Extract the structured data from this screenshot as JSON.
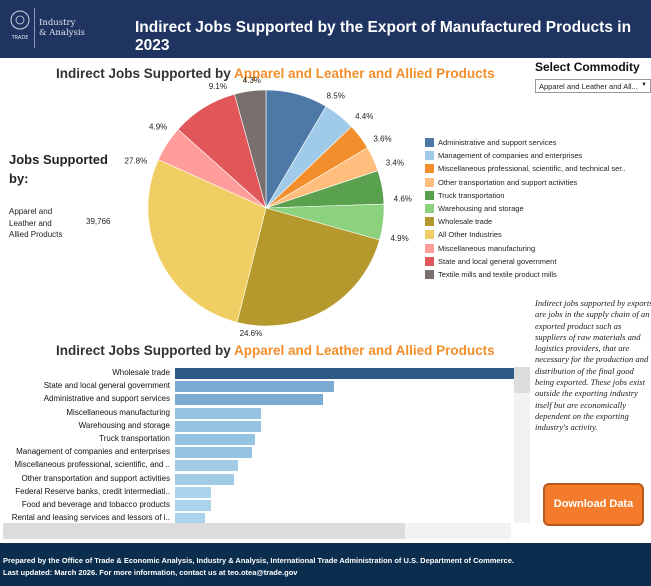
{
  "header": {
    "logo_text_1": "Industry",
    "logo_text_2": "& Analysis",
    "logo_seal_text": "TRADE",
    "title": "Indirect Jobs Supported by the Export of Manufactured Products in 2023"
  },
  "pie_title": {
    "prefix": "Indirect Jobs Supported by ",
    "commodity": "Apparel and Leather and Allied Products"
  },
  "bar_title": {
    "prefix": "Indirect Jobs Supported by ",
    "commodity": "Apparel and Leather and Allied Products"
  },
  "filter": {
    "label": "Select Commodity",
    "value": "Apparel and Leather and All...",
    "arrow": "▼"
  },
  "summary": {
    "heading": "Jobs Supported by:",
    "commodity": "Apparel and Leather and Allied Products",
    "value": "39,766"
  },
  "description": "Indirect jobs supported by exports are jobs in the supply chain of an exported product such as suppliers of raw materials and logistics providers, that are necessary for the production and distribution of the final good being exported. These jobs exist outside the exporting industry itself but are economically dependent on the exporting industry's activity.",
  "download_label": "Download Data",
  "footer": {
    "line1": "Prepared by the Office of Trade & Economic Analysis, Industry & Analysis, International Trade Administration of U.S. Department of Commerce.",
    "line2": "Last updated: March 2026. For more information, contact us at teo.otea@trade.gov"
  },
  "chart_data": [
    {
      "type": "pie",
      "title": "Indirect Jobs Supported by Apparel and Leather and Allied Products",
      "legend": "right",
      "slices": [
        {
          "name": "Administrative and support services",
          "value": 8.5,
          "label": "8.5%",
          "color": "#4e79a7"
        },
        {
          "name": "Management of companies and enterprises",
          "value": 4.4,
          "label": "4.4%",
          "color": "#a0cbe8"
        },
        {
          "name": "Miscellaneous professional, scientific, and technical ser..",
          "value": 3.6,
          "label": "3.6%",
          "color": "#f28e2b"
        },
        {
          "name": "Other transportation and support activities",
          "value": 3.4,
          "label": "3.4%",
          "color": "#ffbe7d"
        },
        {
          "name": "Truck transportation",
          "value": 4.6,
          "label": "4.6%",
          "color": "#59a14f"
        },
        {
          "name": "Warehousing and storage",
          "value": 4.9,
          "label": "4.9%",
          "color": "#8cd17d"
        },
        {
          "name": "Wholesale trade",
          "value": 24.6,
          "label": "24.6%",
          "color": "#b6992d"
        },
        {
          "name": "All Other Industries",
          "value": 27.8,
          "label": "27.8%",
          "color": "#f1ce63"
        },
        {
          "name": "Miscellaneous manufacturing",
          "value": 4.9,
          "label": "4.9%",
          "color": "#ff9d9a"
        },
        {
          "name": "State and local general government",
          "value": 9.1,
          "label": "9.1%",
          "color": "#e15759"
        },
        {
          "name": "Textile mills and textile product mills",
          "value": 4.3,
          "label": "4.3%",
          "color": "#79706e"
        }
      ]
    },
    {
      "type": "bar",
      "orientation": "horizontal",
      "title": "Indirect Jobs Supported by Apparel and Leather and Allied Products",
      "categories": [
        "Wholesale trade",
        "State and local general government",
        "Administrative and support services",
        "Miscellaneous manufacturing",
        "Warehousing and storage",
        "Truck transportation",
        "Management of companies and enterprises",
        "Miscellaneous professional, scientific, and ..",
        "Other transportation and support activities",
        "Federal Reserve banks, credit intermediati..",
        "Food and beverage and tobacco products",
        "Rental and leasing services and lessors of i.."
      ],
      "values": [
        9782,
        3619,
        3380,
        1949,
        1949,
        1829,
        1750,
        1432,
        1352,
        820,
        820,
        680
      ],
      "colors": [
        "#2c5985",
        "#7aabd2",
        "#7aabd2",
        "#97c3e3",
        "#97c3e3",
        "#97c3e3",
        "#97c3e3",
        "#a3cbe6",
        "#a3cbe6",
        "#acd3ec",
        "#acd3ec",
        "#acd3ec"
      ]
    }
  ]
}
